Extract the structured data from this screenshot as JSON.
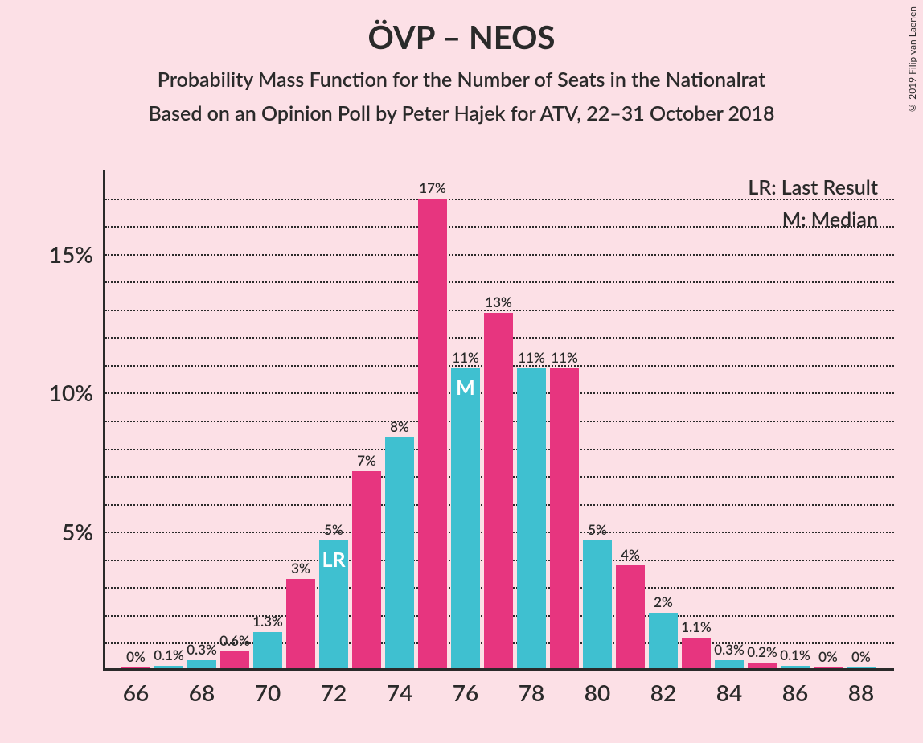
{
  "title": "ÖVP – NEOS",
  "subtitle1": "Probability Mass Function for the Number of Seats in the Nationalrat",
  "subtitle2": "Based on an Opinion Poll by Peter Hajek for ATV, 22–31 October 2018",
  "copyright": "© 2019 Filip van Laenen",
  "legend": {
    "lr": "LR: Last Result",
    "m": "M: Median"
  },
  "chart": {
    "type": "bar",
    "background_color": "#fce0e6",
    "axis_color": "#2a2a2a",
    "grid_color": "#2a2a2a",
    "text_color": "#2a2a2a",
    "annot_text_color": "#ffffff",
    "title_fontsize": 40,
    "subtitle_fontsize": 25,
    "axis_label_fontsize": 28,
    "bar_label_fontsize": 17,
    "annot_fontsize": 25,
    "colors": {
      "pink": "#e7357f",
      "cyan": "#3fc0d0"
    },
    "xmin": 65,
    "xmax": 89,
    "ymin": 0,
    "ymax": 18,
    "y_major_ticks": [
      5,
      10,
      15
    ],
    "y_minor_step": 1,
    "x_ticks": [
      66,
      68,
      70,
      72,
      74,
      76,
      78,
      80,
      82,
      84,
      86,
      88
    ],
    "bar_width_units": 0.9,
    "bars": [
      {
        "x": 66,
        "value": 0.03,
        "label": "0%",
        "color": "pink"
      },
      {
        "x": 67,
        "value": 0.1,
        "label": "0.1%",
        "color": "cyan"
      },
      {
        "x": 68,
        "value": 0.3,
        "label": "0.3%",
        "color": "cyan"
      },
      {
        "x": 69,
        "value": 0.6,
        "label": "0.6%",
        "color": "pink"
      },
      {
        "x": 70,
        "value": 1.3,
        "label": "1.3%",
        "color": "cyan"
      },
      {
        "x": 71,
        "value": 3.2,
        "label": "3%",
        "color": "pink"
      },
      {
        "x": 72,
        "value": 4.6,
        "label": "5%",
        "color": "cyan",
        "annot": "LR"
      },
      {
        "x": 73,
        "value": 7.1,
        "label": "7%",
        "color": "pink"
      },
      {
        "x": 74,
        "value": 8.3,
        "label": "8%",
        "color": "cyan"
      },
      {
        "x": 75,
        "value": 16.9,
        "label": "17%",
        "color": "pink"
      },
      {
        "x": 76,
        "value": 10.8,
        "label": "11%",
        "color": "cyan",
        "annot": "M"
      },
      {
        "x": 77,
        "value": 12.8,
        "label": "13%",
        "color": "pink"
      },
      {
        "x": 78,
        "value": 10.8,
        "label": "11%",
        "color": "cyan"
      },
      {
        "x": 79,
        "value": 10.8,
        "label": "11%",
        "color": "pink"
      },
      {
        "x": 80,
        "value": 4.6,
        "label": "5%",
        "color": "cyan"
      },
      {
        "x": 81,
        "value": 3.7,
        "label": "4%",
        "color": "pink"
      },
      {
        "x": 82,
        "value": 2.0,
        "label": "2%",
        "color": "cyan"
      },
      {
        "x": 83,
        "value": 1.1,
        "label": "1.1%",
        "color": "pink"
      },
      {
        "x": 84,
        "value": 0.3,
        "label": "0.3%",
        "color": "cyan"
      },
      {
        "x": 85,
        "value": 0.2,
        "label": "0.2%",
        "color": "pink"
      },
      {
        "x": 86,
        "value": 0.1,
        "label": "0.1%",
        "color": "cyan"
      },
      {
        "x": 87,
        "value": 0.02,
        "label": "0%",
        "color": "pink"
      },
      {
        "x": 88,
        "value": 0.02,
        "label": "0%",
        "color": "cyan"
      }
    ]
  }
}
